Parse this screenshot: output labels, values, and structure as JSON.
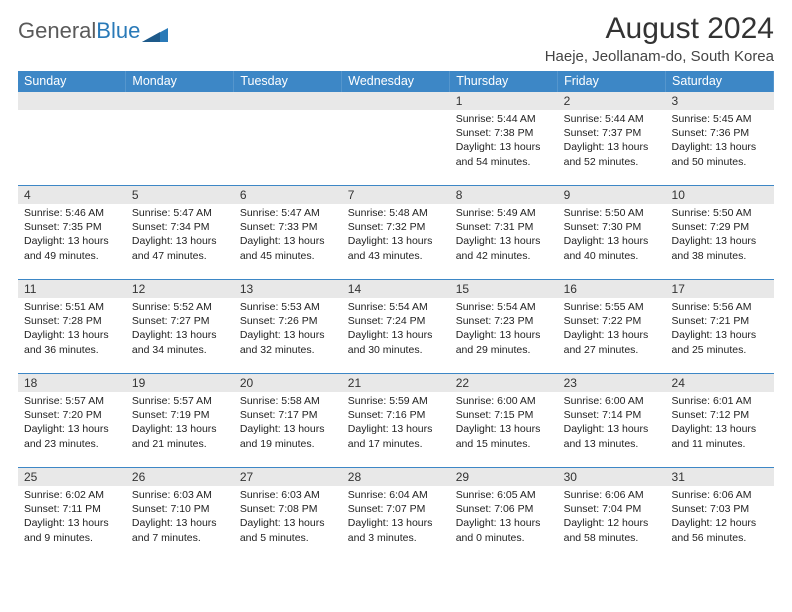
{
  "logo": {
    "text1": "General",
    "text2": "Blue"
  },
  "title": "August 2024",
  "location": "Haeje, Jeollanam-do, South Korea",
  "colors": {
    "header_bg": "#3d87c6",
    "header_text": "#ffffff",
    "daynum_bg": "#e8e8e8",
    "row_border": "#3d87c6",
    "logo_gray": "#5a5a5a",
    "logo_blue": "#2a7ab8"
  },
  "day_headers": [
    "Sunday",
    "Monday",
    "Tuesday",
    "Wednesday",
    "Thursday",
    "Friday",
    "Saturday"
  ],
  "weeks": [
    [
      {
        "num": "",
        "empty": true
      },
      {
        "num": "",
        "empty": true
      },
      {
        "num": "",
        "empty": true
      },
      {
        "num": "",
        "empty": true
      },
      {
        "num": "1",
        "sunrise": "Sunrise: 5:44 AM",
        "sunset": "Sunset: 7:38 PM",
        "daylight": "Daylight: 13 hours and 54 minutes."
      },
      {
        "num": "2",
        "sunrise": "Sunrise: 5:44 AM",
        "sunset": "Sunset: 7:37 PM",
        "daylight": "Daylight: 13 hours and 52 minutes."
      },
      {
        "num": "3",
        "sunrise": "Sunrise: 5:45 AM",
        "sunset": "Sunset: 7:36 PM",
        "daylight": "Daylight: 13 hours and 50 minutes."
      }
    ],
    [
      {
        "num": "4",
        "sunrise": "Sunrise: 5:46 AM",
        "sunset": "Sunset: 7:35 PM",
        "daylight": "Daylight: 13 hours and 49 minutes."
      },
      {
        "num": "5",
        "sunrise": "Sunrise: 5:47 AM",
        "sunset": "Sunset: 7:34 PM",
        "daylight": "Daylight: 13 hours and 47 minutes."
      },
      {
        "num": "6",
        "sunrise": "Sunrise: 5:47 AM",
        "sunset": "Sunset: 7:33 PM",
        "daylight": "Daylight: 13 hours and 45 minutes."
      },
      {
        "num": "7",
        "sunrise": "Sunrise: 5:48 AM",
        "sunset": "Sunset: 7:32 PM",
        "daylight": "Daylight: 13 hours and 43 minutes."
      },
      {
        "num": "8",
        "sunrise": "Sunrise: 5:49 AM",
        "sunset": "Sunset: 7:31 PM",
        "daylight": "Daylight: 13 hours and 42 minutes."
      },
      {
        "num": "9",
        "sunrise": "Sunrise: 5:50 AM",
        "sunset": "Sunset: 7:30 PM",
        "daylight": "Daylight: 13 hours and 40 minutes."
      },
      {
        "num": "10",
        "sunrise": "Sunrise: 5:50 AM",
        "sunset": "Sunset: 7:29 PM",
        "daylight": "Daylight: 13 hours and 38 minutes."
      }
    ],
    [
      {
        "num": "11",
        "sunrise": "Sunrise: 5:51 AM",
        "sunset": "Sunset: 7:28 PM",
        "daylight": "Daylight: 13 hours and 36 minutes."
      },
      {
        "num": "12",
        "sunrise": "Sunrise: 5:52 AM",
        "sunset": "Sunset: 7:27 PM",
        "daylight": "Daylight: 13 hours and 34 minutes."
      },
      {
        "num": "13",
        "sunrise": "Sunrise: 5:53 AM",
        "sunset": "Sunset: 7:26 PM",
        "daylight": "Daylight: 13 hours and 32 minutes."
      },
      {
        "num": "14",
        "sunrise": "Sunrise: 5:54 AM",
        "sunset": "Sunset: 7:24 PM",
        "daylight": "Daylight: 13 hours and 30 minutes."
      },
      {
        "num": "15",
        "sunrise": "Sunrise: 5:54 AM",
        "sunset": "Sunset: 7:23 PM",
        "daylight": "Daylight: 13 hours and 29 minutes."
      },
      {
        "num": "16",
        "sunrise": "Sunrise: 5:55 AM",
        "sunset": "Sunset: 7:22 PM",
        "daylight": "Daylight: 13 hours and 27 minutes."
      },
      {
        "num": "17",
        "sunrise": "Sunrise: 5:56 AM",
        "sunset": "Sunset: 7:21 PM",
        "daylight": "Daylight: 13 hours and 25 minutes."
      }
    ],
    [
      {
        "num": "18",
        "sunrise": "Sunrise: 5:57 AM",
        "sunset": "Sunset: 7:20 PM",
        "daylight": "Daylight: 13 hours and 23 minutes."
      },
      {
        "num": "19",
        "sunrise": "Sunrise: 5:57 AM",
        "sunset": "Sunset: 7:19 PM",
        "daylight": "Daylight: 13 hours and 21 minutes."
      },
      {
        "num": "20",
        "sunrise": "Sunrise: 5:58 AM",
        "sunset": "Sunset: 7:17 PM",
        "daylight": "Daylight: 13 hours and 19 minutes."
      },
      {
        "num": "21",
        "sunrise": "Sunrise: 5:59 AM",
        "sunset": "Sunset: 7:16 PM",
        "daylight": "Daylight: 13 hours and 17 minutes."
      },
      {
        "num": "22",
        "sunrise": "Sunrise: 6:00 AM",
        "sunset": "Sunset: 7:15 PM",
        "daylight": "Daylight: 13 hours and 15 minutes."
      },
      {
        "num": "23",
        "sunrise": "Sunrise: 6:00 AM",
        "sunset": "Sunset: 7:14 PM",
        "daylight": "Daylight: 13 hours and 13 minutes."
      },
      {
        "num": "24",
        "sunrise": "Sunrise: 6:01 AM",
        "sunset": "Sunset: 7:12 PM",
        "daylight": "Daylight: 13 hours and 11 minutes."
      }
    ],
    [
      {
        "num": "25",
        "sunrise": "Sunrise: 6:02 AM",
        "sunset": "Sunset: 7:11 PM",
        "daylight": "Daylight: 13 hours and 9 minutes."
      },
      {
        "num": "26",
        "sunrise": "Sunrise: 6:03 AM",
        "sunset": "Sunset: 7:10 PM",
        "daylight": "Daylight: 13 hours and 7 minutes."
      },
      {
        "num": "27",
        "sunrise": "Sunrise: 6:03 AM",
        "sunset": "Sunset: 7:08 PM",
        "daylight": "Daylight: 13 hours and 5 minutes."
      },
      {
        "num": "28",
        "sunrise": "Sunrise: 6:04 AM",
        "sunset": "Sunset: 7:07 PM",
        "daylight": "Daylight: 13 hours and 3 minutes."
      },
      {
        "num": "29",
        "sunrise": "Sunrise: 6:05 AM",
        "sunset": "Sunset: 7:06 PM",
        "daylight": "Daylight: 13 hours and 0 minutes."
      },
      {
        "num": "30",
        "sunrise": "Sunrise: 6:06 AM",
        "sunset": "Sunset: 7:04 PM",
        "daylight": "Daylight: 12 hours and 58 minutes."
      },
      {
        "num": "31",
        "sunrise": "Sunrise: 6:06 AM",
        "sunset": "Sunset: 7:03 PM",
        "daylight": "Daylight: 12 hours and 56 minutes."
      }
    ]
  ]
}
